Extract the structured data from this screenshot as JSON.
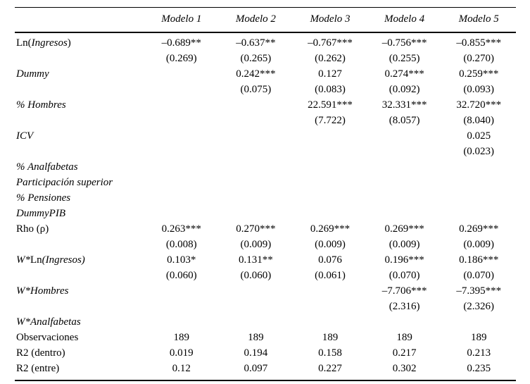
{
  "table": {
    "header": {
      "corner": "",
      "columns": [
        "Modelo 1",
        "Modelo 2",
        "Modelo 3",
        "Modelo 4",
        "Modelo 5"
      ]
    },
    "rows": [
      {
        "label": [
          {
            "t": "Ln(",
            "i": 0
          },
          {
            "t": "Ingresos",
            "i": 1
          },
          {
            "t": ")",
            "i": 0
          }
        ],
        "cells": [
          "–0.689**",
          "–0.637**",
          "–0.767***",
          "–0.756***",
          "–0.855***"
        ]
      },
      {
        "label": [],
        "cells": [
          "(0.269)",
          "(0.265)",
          "(0.262)",
          "(0.255)",
          "(0.270)"
        ]
      },
      {
        "label": [
          {
            "t": "Dummy",
            "i": 1
          }
        ],
        "cells": [
          "",
          "0.242***",
          "0.127",
          "0.274***",
          "0.259***"
        ]
      },
      {
        "label": [],
        "cells": [
          "",
          "(0.075)",
          "(0.083)",
          "(0.092)",
          "(0.093)"
        ]
      },
      {
        "label": [
          {
            "t": "% Hombres",
            "i": 1
          }
        ],
        "cells": [
          "",
          "",
          "22.591***",
          "32.331***",
          "32.720***"
        ]
      },
      {
        "label": [],
        "cells": [
          "",
          "",
          "(7.722)",
          "(8.057)",
          "(8.040)"
        ]
      },
      {
        "label": [
          {
            "t": "ICV",
            "i": 1
          }
        ],
        "cells": [
          "",
          "",
          "",
          "",
          "0.025"
        ]
      },
      {
        "label": [],
        "cells": [
          "",
          "",
          "",
          "",
          "(0.023)"
        ]
      },
      {
        "label": [
          {
            "t": "% Analfabetas",
            "i": 1
          }
        ],
        "cells": [
          "",
          "",
          "",
          "",
          ""
        ]
      },
      {
        "label": [
          {
            "t": "Participación superior",
            "i": 1
          }
        ],
        "cells": [
          "",
          "",
          "",
          "",
          ""
        ]
      },
      {
        "label": [
          {
            "t": "% Pensiones",
            "i": 1
          }
        ],
        "cells": [
          "",
          "",
          "",
          "",
          ""
        ]
      },
      {
        "label": [
          {
            "t": "DummyPIB",
            "i": 1
          }
        ],
        "cells": [
          "",
          "",
          "",
          "",
          ""
        ]
      },
      {
        "label": [
          {
            "t": "Rho (ρ)",
            "i": 0
          }
        ],
        "cells": [
          "0.263***",
          "0.270***",
          "0.269***",
          "0.269***",
          "0.269***"
        ]
      },
      {
        "label": [],
        "cells": [
          "(0.008)",
          "(0.009)",
          "(0.009)",
          "(0.009)",
          "(0.009)"
        ]
      },
      {
        "label": [
          {
            "t": "W*",
            "i": 1
          },
          {
            "t": "Ln",
            "i": 0
          },
          {
            "t": "(Ingresos)",
            "i": 1
          }
        ],
        "cells": [
          "0.103*",
          "0.131**",
          "0.076",
          "0.196***",
          "0.186***"
        ]
      },
      {
        "label": [],
        "cells": [
          "(0.060)",
          "(0.060)",
          "(0.061)",
          "(0.070)",
          "(0.070)"
        ]
      },
      {
        "label": [
          {
            "t": "W*Hombres",
            "i": 1
          }
        ],
        "cells": [
          "",
          "",
          "",
          "–7.706***",
          "–7.395***"
        ]
      },
      {
        "label": [],
        "cells": [
          "",
          "",
          "",
          "(2.316)",
          "(2.326)"
        ]
      },
      {
        "label": [
          {
            "t": "W*Analfabetas",
            "i": 1
          }
        ],
        "cells": [
          "",
          "",
          "",
          "",
          ""
        ]
      },
      {
        "label": [
          {
            "t": "Observaciones",
            "i": 0
          }
        ],
        "cells": [
          "189",
          "189",
          "189",
          "189",
          "189"
        ]
      },
      {
        "label": [
          {
            "t": "R2 (dentro)",
            "i": 0
          }
        ],
        "cells": [
          "0.019",
          "0.194",
          "0.158",
          "0.217",
          "0.213"
        ]
      },
      {
        "label": [
          {
            "t": "R2 (entre)",
            "i": 0
          }
        ],
        "cells": [
          "0.12",
          "0.097",
          "0.227",
          "0.302",
          "0.235"
        ]
      }
    ]
  }
}
